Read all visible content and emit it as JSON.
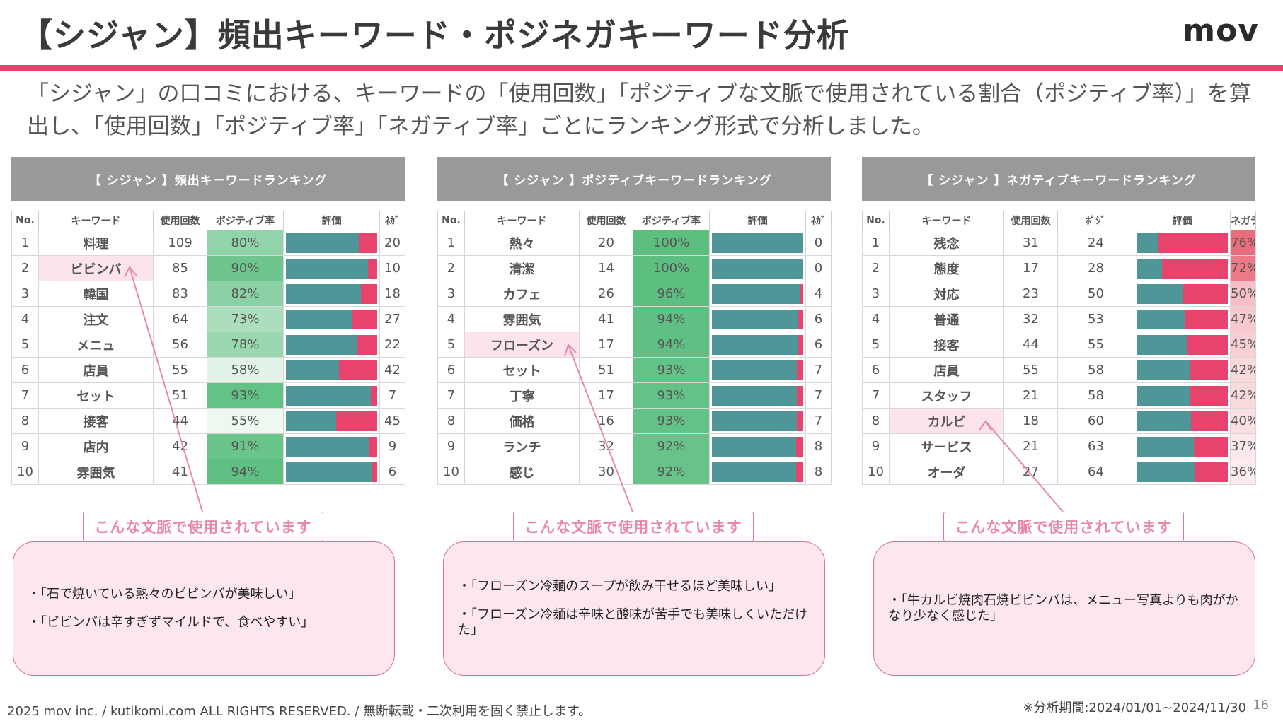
{
  "header": {
    "title": "【シジャン】頻出キーワード・ポジネガキーワード分析",
    "logo": "mov",
    "accent_color": "#e8436c"
  },
  "intro": "「シジャン」の口コミにおける、キーワードの「使用回数」「ポジティブな文脈で使用されている割合（ポジティブ率）」を算出し、「使用回数」「ポジティブ率」「ネガティブ率」ごとにランキング形式で分析しました。",
  "colors": {
    "positive_bar": "#4e9697",
    "negative_bar": "#e8436c",
    "positive_rate_scale": "#5cbf80",
    "negative_rate_scale": "#e8606f",
    "panel_header": "#999999",
    "callout_border": "#d86f96",
    "callout_fill": "#fde6ef"
  },
  "tables": [
    {
      "title": "【 シジャン 】頻出キーワードランキング",
      "mode": "positive",
      "columns": [
        "No.",
        "キーワード",
        "使用回数",
        "ポジティブ率",
        "評価",
        "ﾈｶﾞ"
      ],
      "rows": [
        {
          "no": "1",
          "keyword": "料理",
          "count": "109",
          "rate": "80%",
          "value": 80,
          "other": "20"
        },
        {
          "no": "2",
          "keyword": "ビビンバ",
          "count": "85",
          "rate": "90%",
          "value": 90,
          "other": "10",
          "highlight": true
        },
        {
          "no": "3",
          "keyword": "韓国",
          "count": "83",
          "rate": "82%",
          "value": 82,
          "other": "18"
        },
        {
          "no": "4",
          "keyword": "注文",
          "count": "64",
          "rate": "73%",
          "value": 73,
          "other": "27"
        },
        {
          "no": "5",
          "keyword": "メニュ",
          "count": "56",
          "rate": "78%",
          "value": 78,
          "other": "22"
        },
        {
          "no": "6",
          "keyword": "店員",
          "count": "55",
          "rate": "58%",
          "value": 58,
          "other": "42"
        },
        {
          "no": "7",
          "keyword": "セット",
          "count": "51",
          "rate": "93%",
          "value": 93,
          "other": "7"
        },
        {
          "no": "8",
          "keyword": "接客",
          "count": "44",
          "rate": "55%",
          "value": 55,
          "other": "45"
        },
        {
          "no": "9",
          "keyword": "店内",
          "count": "42",
          "rate": "91%",
          "value": 91,
          "other": "9"
        },
        {
          "no": "10",
          "keyword": "雰囲気",
          "count": "41",
          "rate": "94%",
          "value": 94,
          "other": "6"
        }
      ],
      "callout_label": "こんな文脈で使用されています",
      "quotes": [
        "・「石で焼いている熱々のビビンバが美味しい」",
        "・「ビビンバは辛すぎずマイルドで、食べやすい」"
      ]
    },
    {
      "title": "【 シジャン 】ポジティブキーワードランキング",
      "mode": "positive",
      "columns": [
        "No.",
        "キーワード",
        "使用回数",
        "ポジティブ率",
        "評価",
        "ﾈｶﾞ"
      ],
      "rows": [
        {
          "no": "1",
          "keyword": "熱々",
          "count": "20",
          "rate": "100%",
          "value": 100,
          "other": "0"
        },
        {
          "no": "2",
          "keyword": "清潔",
          "count": "14",
          "rate": "100%",
          "value": 100,
          "other": "0"
        },
        {
          "no": "3",
          "keyword": "カフェ",
          "count": "26",
          "rate": "96%",
          "value": 96,
          "other": "4"
        },
        {
          "no": "4",
          "keyword": "雰囲気",
          "count": "41",
          "rate": "94%",
          "value": 94,
          "other": "6"
        },
        {
          "no": "5",
          "keyword": "フローズン",
          "count": "17",
          "rate": "94%",
          "value": 94,
          "other": "6",
          "highlight": true
        },
        {
          "no": "6",
          "keyword": "セット",
          "count": "51",
          "rate": "93%",
          "value": 93,
          "other": "7"
        },
        {
          "no": "7",
          "keyword": "丁寧",
          "count": "17",
          "rate": "93%",
          "value": 93,
          "other": "7"
        },
        {
          "no": "8",
          "keyword": "価格",
          "count": "16",
          "rate": "93%",
          "value": 93,
          "other": "7"
        },
        {
          "no": "9",
          "keyword": "ランチ",
          "count": "32",
          "rate": "92%",
          "value": 92,
          "other": "8"
        },
        {
          "no": "10",
          "keyword": "感じ",
          "count": "30",
          "rate": "92%",
          "value": 92,
          "other": "8"
        }
      ],
      "callout_label": "こんな文脈で使用されています",
      "quotes": [
        "・「フローズン冷麺のスープが飲み干せるほど美味しい」",
        "・「フローズン冷麺は辛味と酸味が苦手でも美味しくいただけた」"
      ]
    },
    {
      "title": "【 シジャン 】ネガティブキーワードランキング",
      "mode": "negative",
      "columns": [
        "No.",
        "キーワード",
        "使用回数",
        "ﾎﾟｼﾞ",
        "評価",
        "ネガティブ率"
      ],
      "rows": [
        {
          "no": "1",
          "keyword": "残念",
          "count": "31",
          "other": "24",
          "value": 76,
          "rate": "76%"
        },
        {
          "no": "2",
          "keyword": "態度",
          "count": "17",
          "other": "28",
          "value": 72,
          "rate": "72%"
        },
        {
          "no": "3",
          "keyword": "対応",
          "count": "23",
          "other": "50",
          "value": 50,
          "rate": "50%"
        },
        {
          "no": "4",
          "keyword": "普通",
          "count": "32",
          "other": "53",
          "value": 47,
          "rate": "47%"
        },
        {
          "no": "5",
          "keyword": "接客",
          "count": "44",
          "other": "55",
          "value": 45,
          "rate": "45%"
        },
        {
          "no": "6",
          "keyword": "店員",
          "count": "55",
          "other": "58",
          "value": 42,
          "rate": "42%"
        },
        {
          "no": "7",
          "keyword": "スタッフ",
          "count": "21",
          "other": "58",
          "value": 42,
          "rate": "42%"
        },
        {
          "no": "8",
          "keyword": "カルビ",
          "count": "18",
          "other": "60",
          "value": 40,
          "rate": "40%",
          "highlight": true
        },
        {
          "no": "9",
          "keyword": "サービス",
          "count": "21",
          "other": "63",
          "value": 37,
          "rate": "37%"
        },
        {
          "no": "10",
          "keyword": "オーダ",
          "count": "27",
          "other": "64",
          "value": 36,
          "rate": "36%"
        }
      ],
      "callout_label": "こんな文脈で使用されています",
      "quotes": [
        "・「牛カルビ焼肉石焼ビビンバは、メニュー写真よりも肉がかなり少なく感じた」"
      ]
    }
  ],
  "footer": {
    "copyright": "2025 mov inc. / kutikomi.com ALL RIGHTS RESERVED. / 無断転載・二次利用を固く禁止します。",
    "period": "※分析期間:2024/01/01~2024/11/30",
    "page": "16"
  }
}
